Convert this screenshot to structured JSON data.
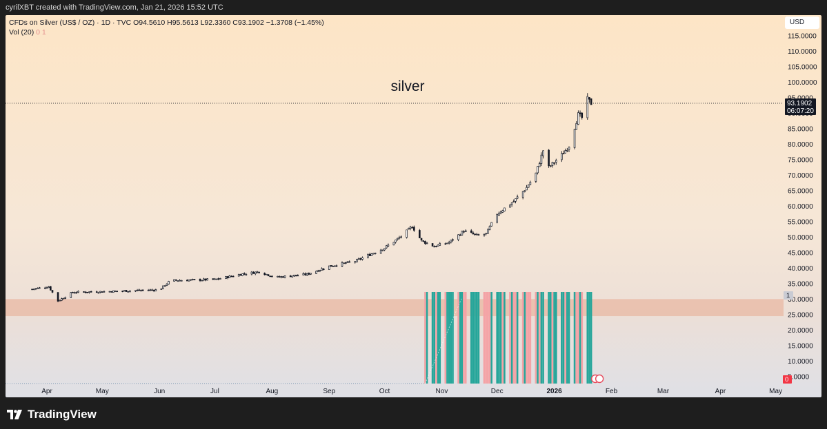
{
  "header": {
    "attribution": "cyrilXBT created with TradingView.com, Jan 21, 2026 15:52 UTC"
  },
  "legend": {
    "symbol_line": "CFDs on Silver (US$ / OZ) · 1D · TVC  O94.5610  H95.5613  L92.3360  C93.1902  −1.3708 (−1.45%)",
    "vol_label": "Vol (20)",
    "vol_val0": "0",
    "vol_val1": "1"
  },
  "currency": "USD",
  "annotation_text": "silver",
  "last_price_label": "93.1902",
  "countdown_label": "06:07:20",
  "volume_axis_badge": "1",
  "volume_zero_badge": "0",
  "brand": "TradingView",
  "colors": {
    "up": "#26a69a",
    "down": "#ef5350",
    "candle": "#131722",
    "bg_top": "#fde8cc",
    "bg_bottom": "#e0e1e6",
    "band": "#e8b5a0",
    "vol_up": "#26a69a",
    "vol_down": "#f4a3a6"
  },
  "chart_data": {
    "type": "candlestick",
    "title": "",
    "xlabel": "",
    "ylabel": "",
    "ylim": [
      0,
      120
    ],
    "y_ticks": [
      "5.0000",
      "10.0000",
      "15.0000",
      "20.0000",
      "25.0000",
      "30.0000",
      "35.0000",
      "40.0000",
      "45.0000",
      "50.0000",
      "55.0000",
      "60.0000",
      "65.0000",
      "70.0000",
      "75.0000",
      "80.0000",
      "85.0000",
      "90.0000",
      "95.0000",
      "100.0000",
      "105.0000",
      "110.0000",
      "115.0000"
    ],
    "x_ticks": [
      "Apr",
      "May",
      "Jun",
      "Jul",
      "Aug",
      "Sep",
      "Oct",
      "Nov",
      "Dec",
      "2026",
      "Feb",
      "Mar",
      "Apr",
      "May"
    ],
    "last_close": 93.1902,
    "horizontal_band": [
      24.5,
      30
    ],
    "anchors": [
      [
        "2025-03-24",
        33.2
      ],
      [
        "2025-04-02",
        34.0
      ],
      [
        "2025-04-07",
        29.4
      ],
      [
        "2025-04-15",
        32.2
      ],
      [
        "2025-05-01",
        32.4
      ],
      [
        "2025-06-01",
        33.0
      ],
      [
        "2025-06-07",
        36.0
      ],
      [
        "2025-07-01",
        36.3
      ],
      [
        "2025-07-15",
        38.0
      ],
      [
        "2025-07-25",
        38.8
      ],
      [
        "2025-08-03",
        37.0
      ],
      [
        "2025-08-20",
        38.0
      ],
      [
        "2025-09-01",
        40.6
      ],
      [
        "2025-09-15",
        42.2
      ],
      [
        "2025-10-01",
        46.5
      ],
      [
        "2025-10-10",
        50.2
      ],
      [
        "2025-10-16",
        53.5
      ],
      [
        "2025-10-21",
        48.8
      ],
      [
        "2025-10-28",
        47.0
      ],
      [
        "2025-11-05",
        48.3
      ],
      [
        "2025-11-13",
        52.0
      ],
      [
        "2025-11-20",
        50.5
      ],
      [
        "2025-11-25",
        51.0
      ],
      [
        "2025-12-01",
        57.5
      ],
      [
        "2025-12-10",
        61.5
      ],
      [
        "2025-12-17",
        66.0
      ],
      [
        "2025-12-22",
        70.5
      ],
      [
        "2025-12-26",
        78.0
      ],
      [
        "2025-12-29",
        72.5
      ],
      [
        "2026-01-05",
        76.5
      ],
      [
        "2026-01-09",
        79.5
      ],
      [
        "2026-01-14",
        89.5
      ],
      [
        "2026-01-16",
        88.5
      ],
      [
        "2026-01-19",
        94.5
      ],
      [
        "2026-01-21",
        93.19
      ]
    ]
  }
}
